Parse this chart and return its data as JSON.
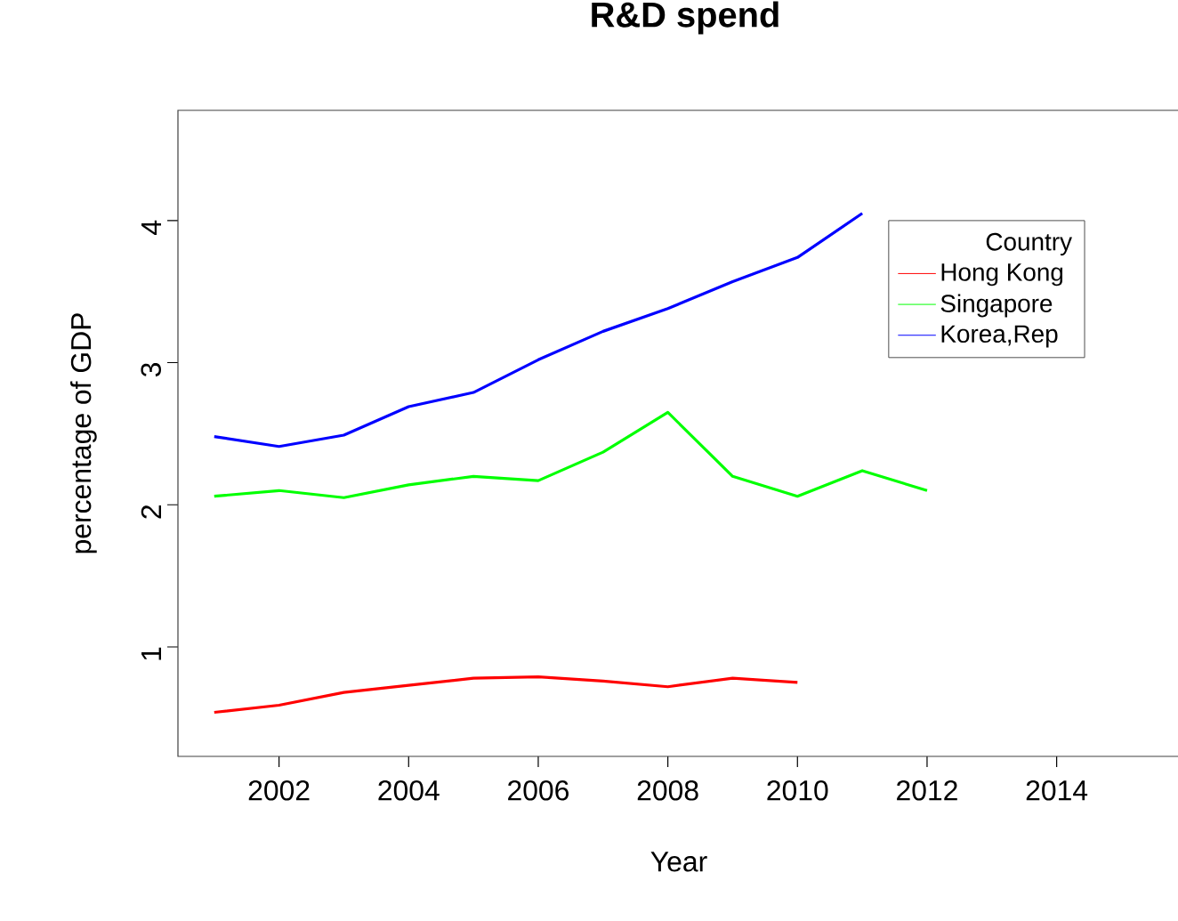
{
  "chart_data": {
    "type": "line",
    "title": "R&D spend",
    "xlabel": "Year",
    "ylabel": "percentage of GDP",
    "legend_title": "Country",
    "xlim": [
      2000.44,
      2015.9
    ],
    "ylim": [
      0.23,
      4.775
    ],
    "xticks": [
      2002,
      2004,
      2006,
      2008,
      2010,
      2012,
      2014
    ],
    "yticks": [
      1,
      2,
      3,
      4
    ],
    "grid": false,
    "legend": "top right",
    "marker": "none",
    "line_style": "solid",
    "series": [
      {
        "name": "Hong Kong",
        "color": "#ff0000",
        "x": [
          2001,
          2002,
          2003,
          2004,
          2005,
          2006,
          2007,
          2008,
          2009,
          2010
        ],
        "values": [
          0.54,
          0.59,
          0.68,
          0.73,
          0.78,
          0.79,
          0.76,
          0.72,
          0.78,
          0.75
        ]
      },
      {
        "name": "Singapore",
        "color": "#00ff00",
        "x": [
          2001,
          2002,
          2003,
          2004,
          2005,
          2006,
          2007,
          2008,
          2009,
          2010,
          2011,
          2012
        ],
        "values": [
          2.06,
          2.1,
          2.05,
          2.14,
          2.2,
          2.17,
          2.37,
          2.65,
          2.2,
          2.06,
          2.24,
          2.1
        ]
      },
      {
        "name": "Korea,Rep",
        "color": "#0000ff",
        "x": [
          2001,
          2002,
          2003,
          2004,
          2005,
          2006,
          2007,
          2008,
          2009,
          2010,
          2011
        ],
        "values": [
          2.48,
          2.41,
          2.49,
          2.69,
          2.79,
          3.02,
          3.22,
          3.38,
          3.57,
          3.74,
          4.05
        ]
      }
    ]
  }
}
